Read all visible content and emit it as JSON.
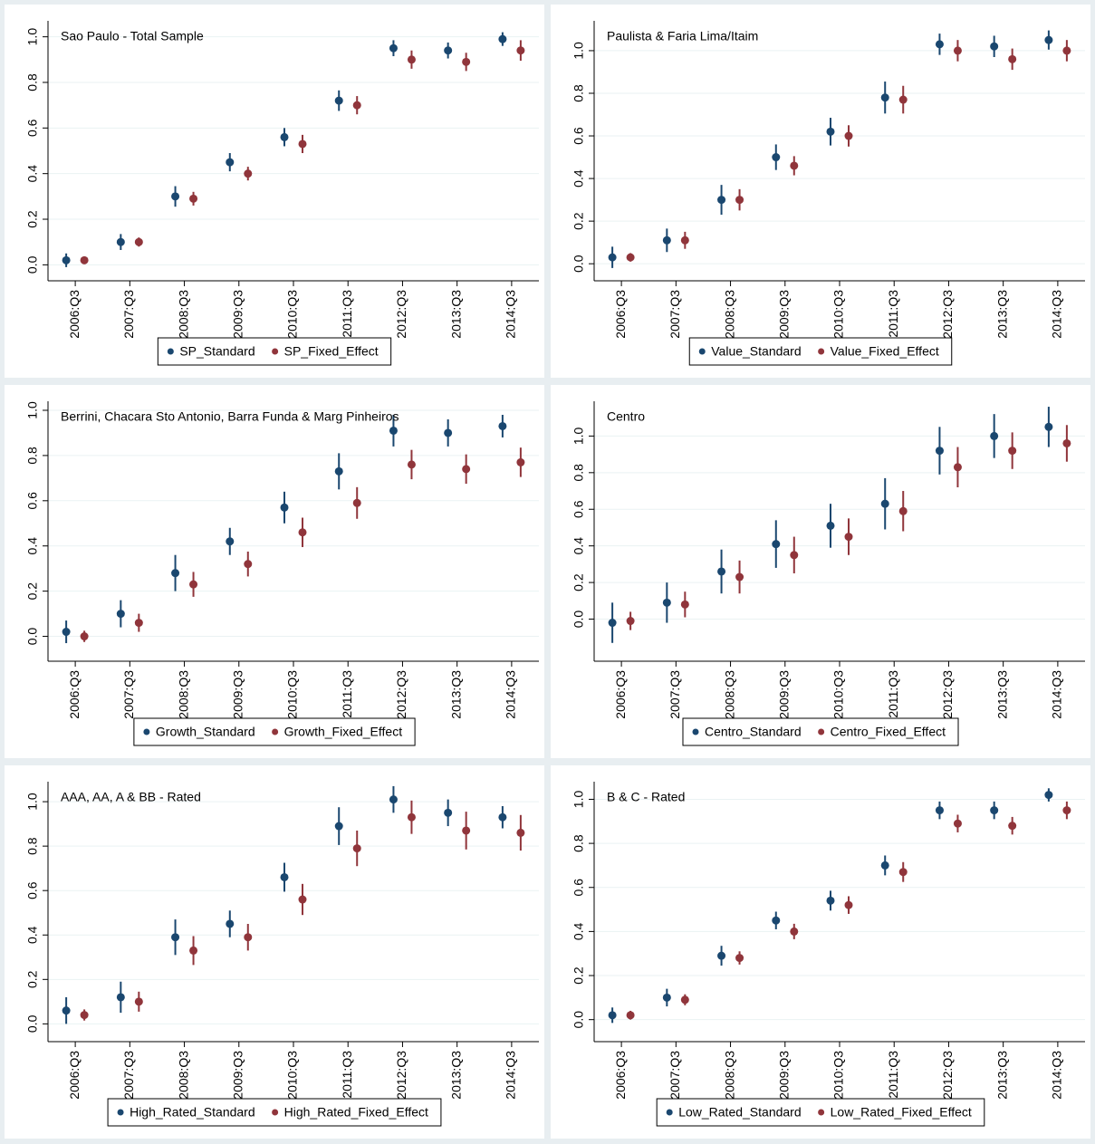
{
  "chart_data": [
    {
      "type": "errorbar",
      "title": "Sao Paulo - Total Sample",
      "categories": [
        "2006:Q3",
        "2007:Q3",
        "2008:Q3",
        "2009:Q3",
        "2010:Q3",
        "2011:Q3",
        "2012:Q3",
        "2013:Q3",
        "2014:Q3"
      ],
      "series": [
        {
          "name": "SP_Standard",
          "color": "#1a476f",
          "values": [
            0.02,
            0.1,
            0.3,
            0.45,
            0.56,
            0.72,
            0.95,
            0.94,
            0.99
          ],
          "errors": [
            0.03,
            0.035,
            0.045,
            0.04,
            0.04,
            0.045,
            0.035,
            0.035,
            0.03
          ]
        },
        {
          "name": "SP_Fixed_Effect",
          "color": "#90353b",
          "values": [
            0.02,
            0.1,
            0.29,
            0.4,
            0.53,
            0.7,
            0.9,
            0.89,
            0.94
          ],
          "errors": [
            0.015,
            0.02,
            0.03,
            0.03,
            0.04,
            0.04,
            0.04,
            0.04,
            0.045
          ]
        }
      ],
      "ylim": [
        -0.07,
        1.07
      ],
      "yticks": [
        {
          "value": 0,
          "label": "0.0"
        },
        {
          "value": 0.2,
          "label": "0.2"
        },
        {
          "value": 0.4,
          "label": "0.4"
        },
        {
          "value": 0.6,
          "label": "0.6"
        },
        {
          "value": 0.8,
          "label": "0.8"
        },
        {
          "value": 1,
          "label": "1.0"
        }
      ],
      "grid": true
    },
    {
      "type": "errorbar",
      "title": "Paulista & Faria Lima/Itaim",
      "categories": [
        "2006:Q3",
        "2007:Q3",
        "2008:Q3",
        "2009:Q3",
        "2010:Q3",
        "2011:Q3",
        "2012:Q3",
        "2013:Q3",
        "2014:Q3"
      ],
      "series": [
        {
          "name": "Value_Standard",
          "color": "#1a476f",
          "values": [
            0.03,
            0.11,
            0.3,
            0.5,
            0.62,
            0.78,
            1.03,
            1.02,
            1.05
          ],
          "errors": [
            0.05,
            0.055,
            0.07,
            0.06,
            0.065,
            0.075,
            0.05,
            0.05,
            0.045
          ]
        },
        {
          "name": "Value_Fixed_Effect",
          "color": "#90353b",
          "values": [
            0.03,
            0.11,
            0.3,
            0.46,
            0.6,
            0.77,
            1.0,
            0.96,
            1.0
          ],
          "errors": [
            0.02,
            0.04,
            0.05,
            0.045,
            0.05,
            0.065,
            0.05,
            0.05,
            0.05
          ]
        }
      ],
      "ylim": [
        -0.08,
        1.14
      ],
      "yticks": [
        {
          "value": 0,
          "label": "0.0"
        },
        {
          "value": 0.2,
          "label": "0.2"
        },
        {
          "value": 0.4,
          "label": "0.4"
        },
        {
          "value": 0.6,
          "label": "0.6"
        },
        {
          "value": 0.8,
          "label": "0.8"
        },
        {
          "value": 1,
          "label": "1.0"
        }
      ],
      "grid": true
    },
    {
      "type": "errorbar",
      "title": "Berrini, Chacara Sto Antonio, Barra Funda & Marg Pinheiros",
      "categories": [
        "2006:Q3",
        "2007:Q3",
        "2008:Q3",
        "2009:Q3",
        "2010:Q3",
        "2011:Q3",
        "2012:Q3",
        "2013:Q3",
        "2014:Q3"
      ],
      "series": [
        {
          "name": "Growth_Standard",
          "color": "#1a476f",
          "values": [
            0.02,
            0.1,
            0.28,
            0.42,
            0.57,
            0.73,
            0.91,
            0.9,
            0.93
          ],
          "errors": [
            0.05,
            0.06,
            0.08,
            0.06,
            0.07,
            0.08,
            0.07,
            0.06,
            0.05
          ]
        },
        {
          "name": "Growth_Fixed_Effect",
          "color": "#90353b",
          "values": [
            0.0,
            0.06,
            0.23,
            0.32,
            0.46,
            0.59,
            0.76,
            0.74,
            0.77
          ],
          "errors": [
            0.025,
            0.04,
            0.055,
            0.055,
            0.065,
            0.07,
            0.065,
            0.065,
            0.065
          ]
        }
      ],
      "ylim": [
        -0.11,
        1.04
      ],
      "yticks": [
        {
          "value": 0,
          "label": "0.0"
        },
        {
          "value": 0.2,
          "label": "0.2"
        },
        {
          "value": 0.4,
          "label": "0.4"
        },
        {
          "value": 0.6,
          "label": "0.6"
        },
        {
          "value": 0.8,
          "label": "0.8"
        },
        {
          "value": 1,
          "label": "1.0"
        }
      ],
      "grid": true
    },
    {
      "type": "errorbar",
      "title": "Centro",
      "categories": [
        "2006:Q3",
        "2007:Q3",
        "2008:Q3",
        "2009:Q3",
        "2010:Q3",
        "2011:Q3",
        "2012:Q3",
        "2013:Q3",
        "2014:Q3"
      ],
      "series": [
        {
          "name": "Centro_Standard",
          "color": "#1a476f",
          "values": [
            -0.02,
            0.09,
            0.26,
            0.41,
            0.51,
            0.63,
            0.92,
            1.0,
            1.05
          ],
          "errors": [
            0.11,
            0.11,
            0.12,
            0.13,
            0.12,
            0.14,
            0.13,
            0.12,
            0.11
          ]
        },
        {
          "name": "Centro_Fixed_Effect",
          "color": "#90353b",
          "values": [
            -0.01,
            0.08,
            0.23,
            0.35,
            0.45,
            0.59,
            0.83,
            0.92,
            0.96
          ],
          "errors": [
            0.05,
            0.07,
            0.09,
            0.1,
            0.1,
            0.11,
            0.11,
            0.1,
            0.1
          ]
        }
      ],
      "ylim": [
        -0.23,
        1.19
      ],
      "yticks": [
        {
          "value": 0,
          "label": "0.0"
        },
        {
          "value": 0.2,
          "label": "0.2"
        },
        {
          "value": 0.4,
          "label": "0.4"
        },
        {
          "value": 0.6,
          "label": "0.6"
        },
        {
          "value": 0.8,
          "label": "0.8"
        },
        {
          "value": 1,
          "label": "1.0"
        }
      ],
      "grid": true
    },
    {
      "type": "errorbar",
      "title": "AAA, AA, A & BB - Rated",
      "categories": [
        "2006:Q3",
        "2007:Q3",
        "2008:Q3",
        "2009:Q3",
        "2010:Q3",
        "2011:Q3",
        "2012:Q3",
        "2013:Q3",
        "2014:Q3"
      ],
      "series": [
        {
          "name": "High_Rated_Standard",
          "color": "#1a476f",
          "values": [
            0.06,
            0.12,
            0.39,
            0.45,
            0.66,
            0.89,
            1.01,
            0.95,
            0.93
          ],
          "errors": [
            0.06,
            0.07,
            0.08,
            0.06,
            0.065,
            0.085,
            0.06,
            0.06,
            0.05
          ]
        },
        {
          "name": "High_Rated_Fixed_Effect",
          "color": "#90353b",
          "values": [
            0.04,
            0.1,
            0.33,
            0.39,
            0.56,
            0.79,
            0.93,
            0.87,
            0.86
          ],
          "errors": [
            0.025,
            0.045,
            0.065,
            0.06,
            0.07,
            0.08,
            0.075,
            0.085,
            0.08
          ]
        }
      ],
      "ylim": [
        -0.08,
        1.09
      ],
      "yticks": [
        {
          "value": 0,
          "label": "0.0"
        },
        {
          "value": 0.2,
          "label": "0.2"
        },
        {
          "value": 0.4,
          "label": "0.4"
        },
        {
          "value": 0.6,
          "label": "0.6"
        },
        {
          "value": 0.8,
          "label": "0.8"
        },
        {
          "value": 1,
          "label": "1.0"
        }
      ],
      "grid": true
    },
    {
      "type": "errorbar",
      "title": "B & C - Rated",
      "categories": [
        "2006:Q3",
        "2007:Q3",
        "2008:Q3",
        "2009:Q3",
        "2010:Q3",
        "2011:Q3",
        "2012:Q3",
        "2013:Q3",
        "2014:Q3"
      ],
      "series": [
        {
          "name": "Low_Rated_Standard",
          "color": "#1a476f",
          "values": [
            0.02,
            0.1,
            0.29,
            0.45,
            0.54,
            0.7,
            0.95,
            0.95,
            1.02
          ],
          "errors": [
            0.035,
            0.04,
            0.045,
            0.04,
            0.045,
            0.045,
            0.04,
            0.04,
            0.03
          ]
        },
        {
          "name": "Low_Rated_Fixed_Effect",
          "color": "#90353b",
          "values": [
            0.02,
            0.09,
            0.28,
            0.4,
            0.52,
            0.67,
            0.89,
            0.88,
            0.95
          ],
          "errors": [
            0.02,
            0.025,
            0.03,
            0.035,
            0.04,
            0.045,
            0.04,
            0.04,
            0.04
          ]
        }
      ],
      "ylim": [
        -0.1,
        1.08
      ],
      "yticks": [
        {
          "value": 0,
          "label": "0.0"
        },
        {
          "value": 0.2,
          "label": "0.2"
        },
        {
          "value": 0.4,
          "label": "0.4"
        },
        {
          "value": 0.6,
          "label": "0.6"
        },
        {
          "value": 0.8,
          "label": "0.8"
        },
        {
          "value": 1,
          "label": "1.0"
        }
      ],
      "grid": true
    }
  ]
}
